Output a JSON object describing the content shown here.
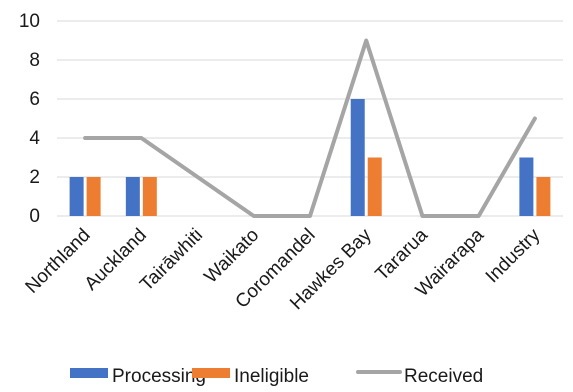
{
  "chart_data": {
    "type": "bar",
    "title": "",
    "xlabel": "",
    "ylabel": "",
    "categories": [
      "Northland",
      "Auckland",
      "Tairāwhiti",
      "Waikato",
      "Coromandel",
      "Hawkes Bay",
      "Tararua",
      "Wairarapa",
      "Industry"
    ],
    "ylim": [
      0,
      10
    ],
    "yticks": [
      0,
      2,
      4,
      6,
      8,
      10
    ],
    "grid": true,
    "legend_position": "bottom",
    "series": [
      {
        "name": "Processing",
        "type": "bar",
        "color": "#4472C4",
        "values": [
          2,
          2,
          0,
          0,
          0,
          6,
          0,
          0,
          3
        ]
      },
      {
        "name": "Ineligible",
        "type": "bar",
        "color": "#ED7D31",
        "values": [
          2,
          2,
          0,
          0,
          0,
          3,
          0,
          0,
          2
        ]
      },
      {
        "name": "Received",
        "type": "line",
        "color": "#A5A5A5",
        "values": [
          4,
          4,
          2,
          0,
          0,
          9,
          0,
          0,
          5
        ]
      }
    ]
  }
}
